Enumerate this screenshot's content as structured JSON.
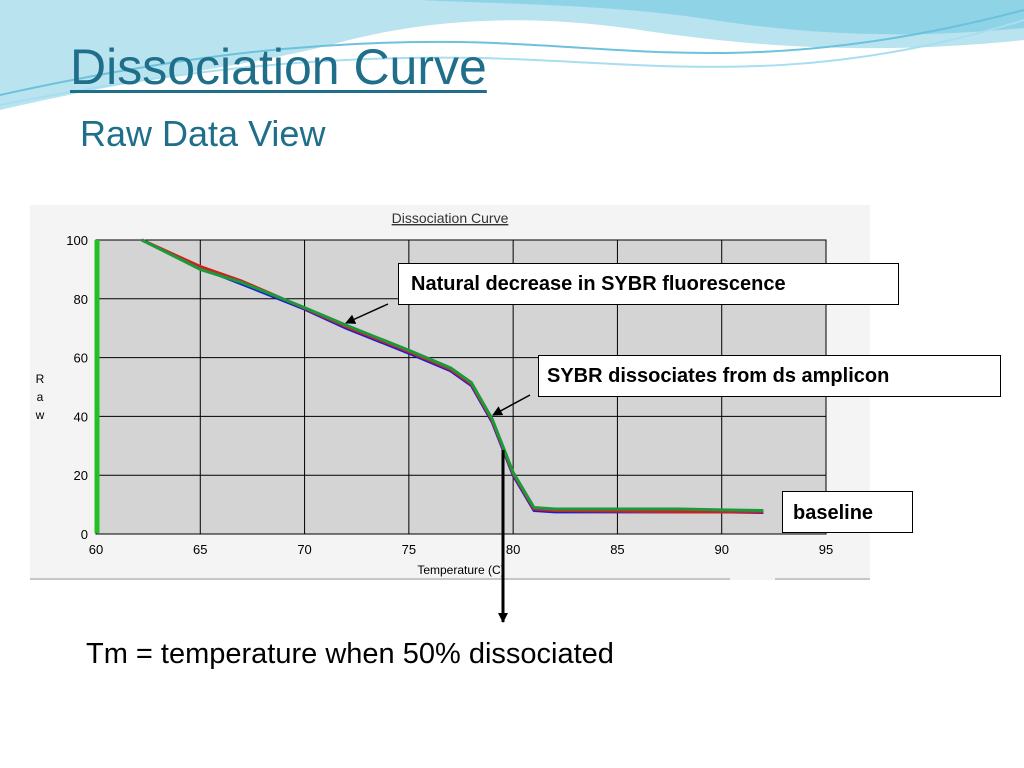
{
  "slide": {
    "title": "Dissociation Curve",
    "subtitle": "Raw Data View"
  },
  "callouts": {
    "fluorescence": "Natural decrease in SYBR fluorescence",
    "dissociates": "SYBR dissociates from ds amplicon",
    "baseline": "baseline"
  },
  "caption": "Tm = temperature when 50% dissociated",
  "chart_data": {
    "type": "line",
    "title": "Dissociation Curve",
    "xlabel": "Temperature (C)",
    "ylabel": "Raw",
    "xlim": [
      60,
      95
    ],
    "ylim": [
      0,
      100
    ],
    "x_ticks": [
      60,
      65,
      70,
      75,
      80,
      85,
      90,
      95
    ],
    "y_ticks": [
      0,
      20,
      40,
      60,
      80,
      100
    ],
    "grid": true,
    "series": [
      {
        "color": "#1a1ad8",
        "x": [
          62.2,
          65,
          67,
          70,
          72,
          75,
          77,
          78,
          79,
          80,
          81,
          82,
          85,
          88,
          90,
          92
        ],
        "y": [
          100,
          90.5,
          85,
          76.5,
          70,
          61.5,
          55.5,
          50.5,
          38,
          20,
          8,
          7.5,
          7.5,
          7.5,
          7.5,
          7.3
        ]
      },
      {
        "color": "#d02020",
        "x": [
          62.2,
          65,
          67,
          70,
          72,
          75,
          77,
          78,
          79,
          80,
          81,
          82,
          85,
          88,
          90,
          92
        ],
        "y": [
          100,
          91,
          86,
          76.8,
          70.5,
          62,
          56,
          51,
          38.5,
          20.5,
          8.5,
          8,
          7.8,
          7.5,
          7.5,
          7.5
        ]
      },
      {
        "color": "#1a9a3a",
        "x": [
          62.2,
          65,
          67,
          70,
          72,
          75,
          77,
          78,
          79,
          80,
          81,
          82,
          85,
          88,
          90,
          92
        ],
        "y": [
          100,
          90,
          85.5,
          77,
          71,
          62.5,
          56.5,
          51.5,
          39,
          21,
          9,
          8.5,
          8.5,
          8.5,
          8.2,
          8
        ]
      }
    ]
  },
  "colors": {
    "title": "#1f6f8b",
    "plot_background": "#d4d4d4",
    "baseline_marker": "#22c022"
  }
}
